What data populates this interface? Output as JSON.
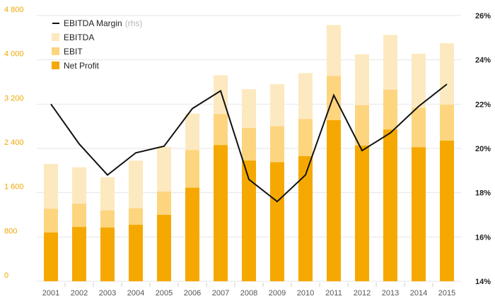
{
  "chart_data": {
    "type": "bar",
    "stacked": false,
    "categories": [
      "2001",
      "2002",
      "2003",
      "2004",
      "2005",
      "2006",
      "2007",
      "2008",
      "2009",
      "2010",
      "2011",
      "2012",
      "2013",
      "2014",
      "2015"
    ],
    "series": [
      {
        "name": "EBITDA",
        "kind": "bar",
        "axis": "left",
        "color": "#fde9c0",
        "values": [
          2120,
          2060,
          1880,
          2180,
          2430,
          3030,
          3720,
          3470,
          3560,
          3760,
          4630,
          4100,
          4450,
          4110,
          4300
        ]
      },
      {
        "name": "EBIT",
        "kind": "bar",
        "axis": "left",
        "color": "#fdd57e",
        "values": [
          1310,
          1400,
          1280,
          1320,
          1620,
          2370,
          3020,
          2770,
          2800,
          2930,
          3710,
          3180,
          3460,
          3130,
          3190
        ]
      },
      {
        "name": "Net Profit",
        "kind": "bar",
        "axis": "left",
        "color": "#f5a800",
        "values": [
          880,
          980,
          970,
          1020,
          1200,
          1690,
          2460,
          2180,
          2150,
          2260,
          2910,
          2450,
          2740,
          2420,
          2540
        ]
      },
      {
        "name": "EBITDA Margin",
        "name_note": "(rhs)",
        "kind": "line",
        "axis": "right",
        "color": "#111111",
        "values": [
          22.0,
          20.2,
          18.8,
          19.8,
          20.1,
          21.8,
          22.6,
          18.6,
          17.6,
          18.8,
          22.4,
          19.9,
          20.7,
          21.9,
          22.9
        ]
      }
    ],
    "y_left": {
      "ticks": [
        "0",
        "800",
        "1 600",
        "2 400",
        "3 200",
        "4 000",
        "4 800"
      ],
      "range": [
        0,
        4800
      ]
    },
    "y_right": {
      "ticks": [
        "14%",
        "16%",
        "18%",
        "20%",
        "22%",
        "24%",
        "26%"
      ],
      "range": [
        14,
        26
      ]
    },
    "legend_order": [
      "EBITDA Margin",
      "EBITDA",
      "EBIT",
      "Net Profit"
    ],
    "legend_position": "top-left",
    "grid": "horizontal",
    "colors": {
      "left_ticks": "#f0a800",
      "right_ticks": "#222222",
      "grid": "#e6e6e6"
    }
  }
}
